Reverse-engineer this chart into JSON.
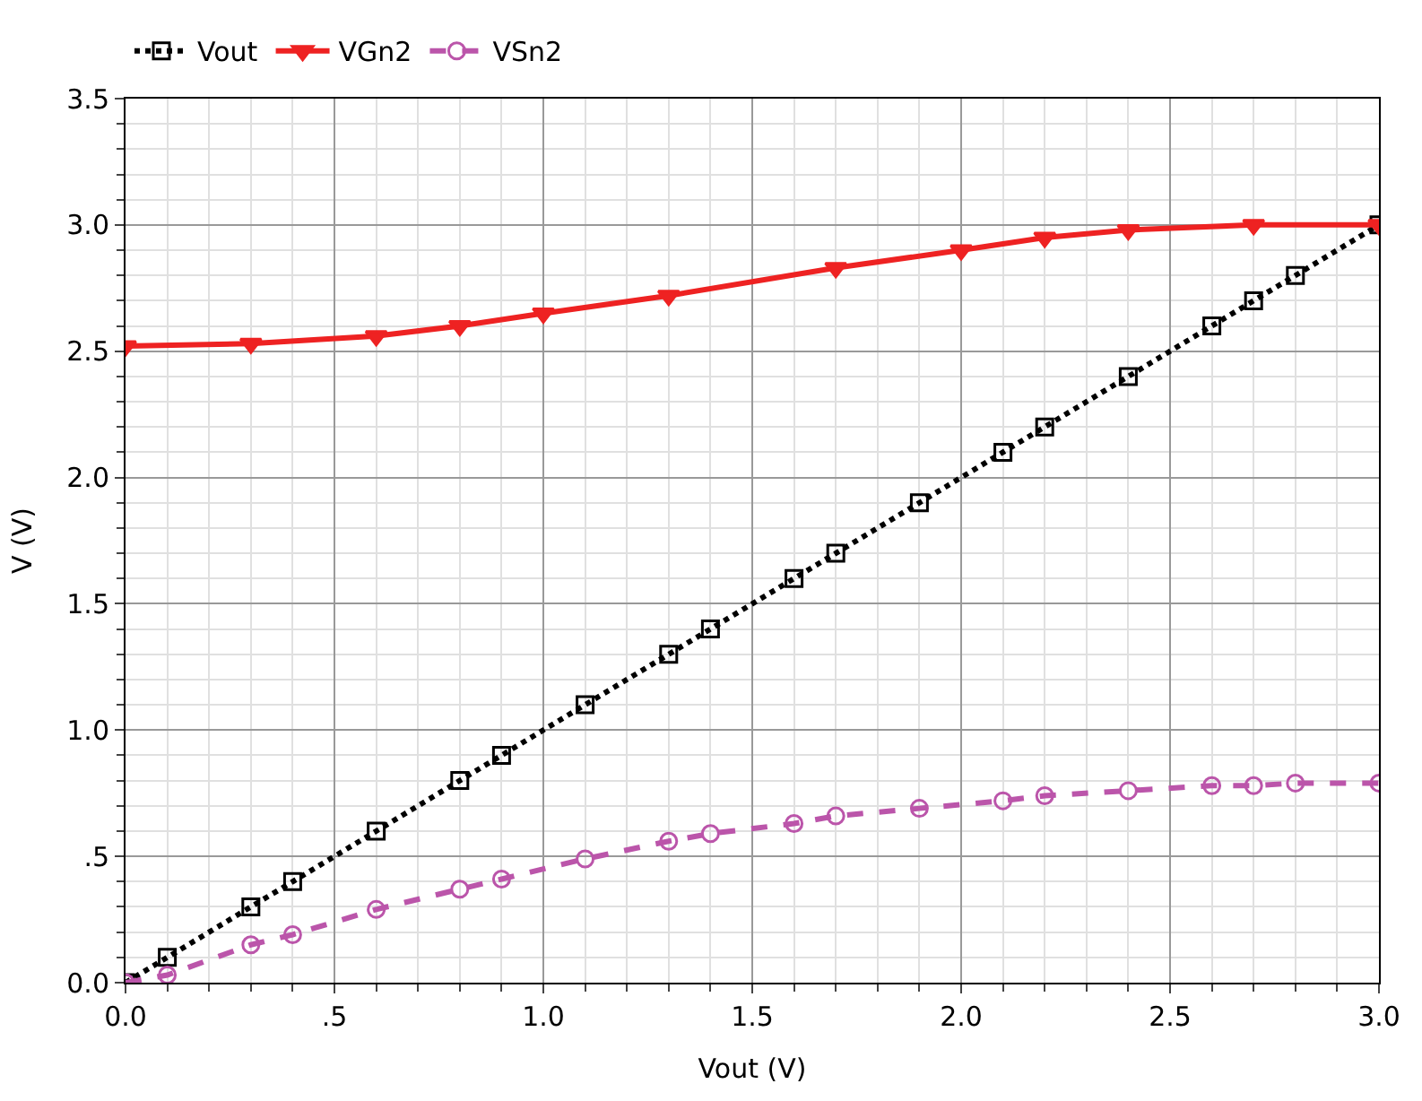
{
  "chart_data": {
    "type": "line",
    "xlabel": "Vout (V)",
    "ylabel": "V (V)",
    "legend": "top left",
    "grid": true,
    "xlim": [
      0,
      3
    ],
    "ylim": [
      0,
      3.5
    ],
    "xticks": [
      {
        "value": 0,
        "label": "0.0"
      },
      {
        "value": 0.5,
        "label": ".5"
      },
      {
        "value": 1,
        "label": "1.0"
      },
      {
        "value": 1.5,
        "label": "1.5"
      },
      {
        "value": 2,
        "label": "2.0"
      },
      {
        "value": 2.5,
        "label": "2.5"
      },
      {
        "value": 3,
        "label": "3.0"
      }
    ],
    "yticks": [
      {
        "value": 0,
        "label": "0.0"
      },
      {
        "value": 0.5,
        "label": ".5"
      },
      {
        "value": 1,
        "label": "1.0"
      },
      {
        "value": 1.5,
        "label": "1.5"
      },
      {
        "value": 2,
        "label": "2.0"
      },
      {
        "value": 2.5,
        "label": "2.5"
      },
      {
        "value": 3,
        "label": "3.0"
      },
      {
        "value": 3.5,
        "label": "3.5"
      }
    ],
    "series": [
      {
        "name": "Vout",
        "color": "#000000",
        "marker": "square",
        "line_style": "dotted",
        "x": [
          0,
          0.1,
          0.3,
          0.4,
          0.6,
          0.8,
          0.9,
          1.1,
          1.3,
          1.4,
          1.6,
          1.7,
          1.9,
          2.1,
          2.2,
          2.4,
          2.6,
          2.7,
          2.8,
          3.0
        ],
        "values": [
          0,
          0.1,
          0.3,
          0.4,
          0.6,
          0.8,
          0.9,
          1.1,
          1.3,
          1.4,
          1.6,
          1.7,
          1.9,
          2.1,
          2.2,
          2.4,
          2.6,
          2.7,
          2.8,
          3.0
        ]
      },
      {
        "name": "VGn2",
        "color": "#ee2222",
        "marker": "triangle",
        "line_style": "solid",
        "x": [
          0,
          0.3,
          0.6,
          0.8,
          1.0,
          1.3,
          1.7,
          2.0,
          2.2,
          2.4,
          2.7,
          3.0
        ],
        "values": [
          2.52,
          2.53,
          2.56,
          2.6,
          2.65,
          2.72,
          2.83,
          2.9,
          2.95,
          2.98,
          3.0,
          3.0
        ]
      },
      {
        "name": "VSn2",
        "color": "#bb55aa",
        "marker": "circle",
        "line_style": "dashed",
        "x": [
          0,
          0.1,
          0.3,
          0.4,
          0.6,
          0.8,
          0.9,
          1.1,
          1.3,
          1.4,
          1.6,
          1.7,
          1.9,
          2.1,
          2.2,
          2.4,
          2.6,
          2.7,
          2.8,
          3.0
        ],
        "values": [
          0,
          0.03,
          0.15,
          0.19,
          0.29,
          0.37,
          0.41,
          0.49,
          0.56,
          0.59,
          0.63,
          0.66,
          0.69,
          0.72,
          0.74,
          0.76,
          0.78,
          0.78,
          0.79,
          0.79
        ]
      }
    ]
  }
}
